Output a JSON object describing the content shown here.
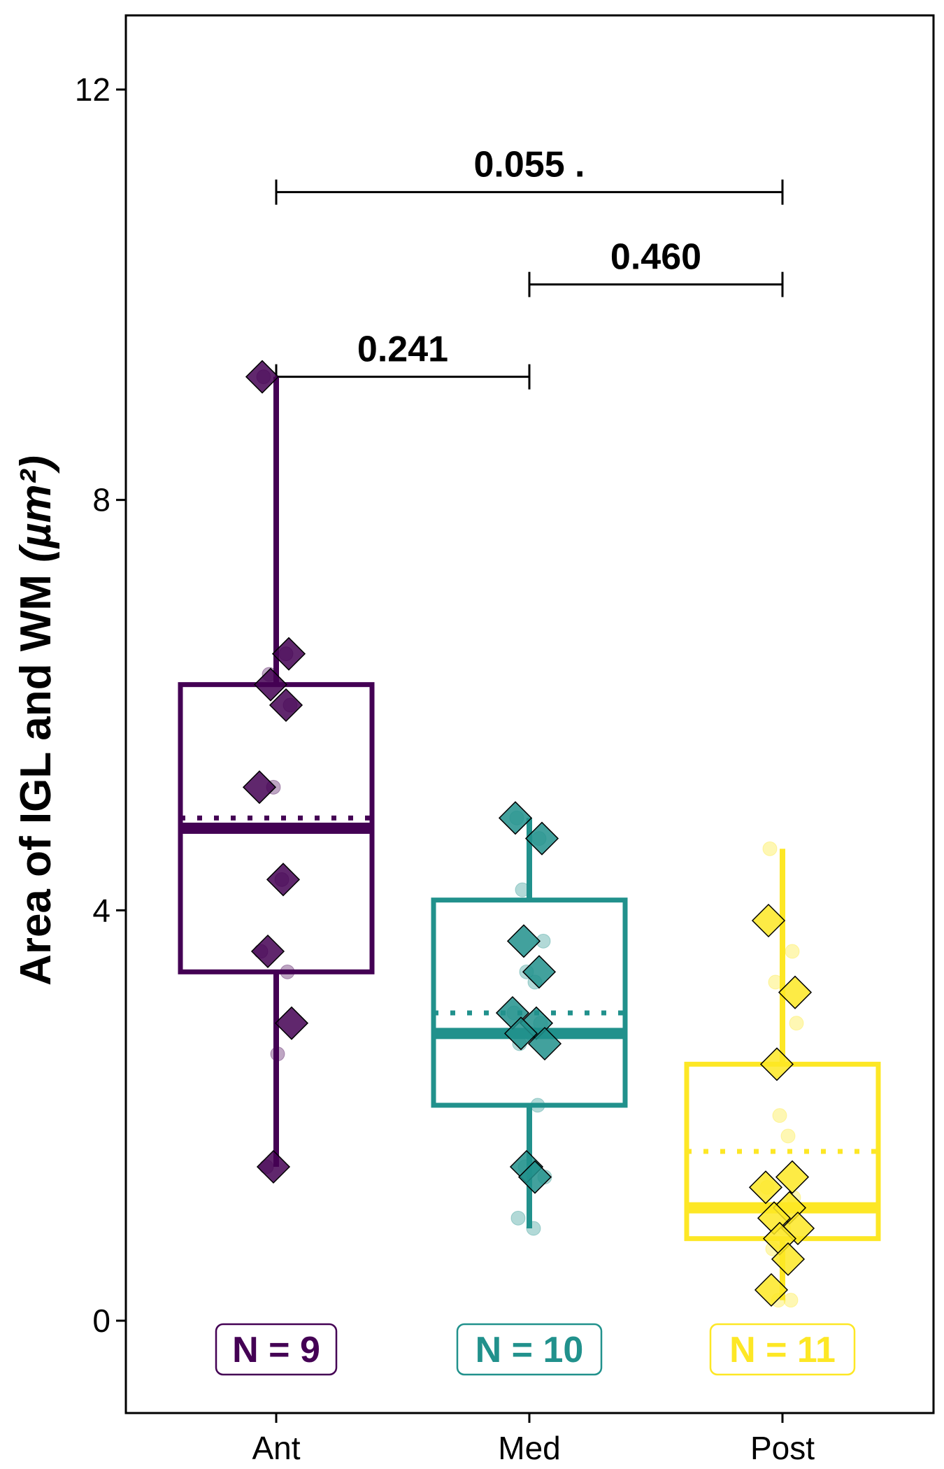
{
  "chart_data": {
    "type": "box",
    "ylabel_main": "Area of IGL and WM ",
    "ylabel_unit": "(µm²)",
    "xlabel": "",
    "ylim": [
      -0.8,
      12.8
    ],
    "yticks": [
      0,
      4,
      8,
      12
    ],
    "ytick_labels": [
      "0",
      "4",
      "8",
      "12"
    ],
    "categories": [
      "Ant",
      "Med",
      "Post"
    ],
    "colors": [
      "#440154",
      "#21918c",
      "#fde725"
    ],
    "groups": [
      {
        "name": "Ant",
        "n_label": "N = 9",
        "q1": 3.4,
        "median": 4.8,
        "q3": 6.2,
        "mean": 4.9,
        "whisker_low": 1.5,
        "whisker_high": 9.2,
        "diamonds": [
          9.2,
          6.5,
          6.2,
          6.0,
          5.2,
          4.3,
          3.6,
          2.9,
          1.5
        ],
        "points": [
          9.2,
          6.5,
          6.3,
          6.0,
          5.2,
          4.3,
          3.6,
          3.4,
          2.6,
          1.5
        ]
      },
      {
        "name": "Med",
        "n_label": "N = 10",
        "q1": 2.1,
        "median": 2.8,
        "q3": 4.1,
        "mean": 3.0,
        "whisker_low": 0.9,
        "whisker_high": 4.9,
        "diamonds": [
          4.9,
          4.7,
          3.7,
          3.4,
          3.0,
          2.9,
          2.8,
          2.7,
          1.5,
          1.4
        ],
        "points": [
          4.9,
          4.7,
          4.2,
          3.7,
          3.4,
          3.3,
          3.0,
          2.9,
          2.8,
          2.7,
          2.1,
          1.5,
          1.4,
          1.0,
          0.9
        ]
      },
      {
        "name": "Post",
        "n_label": "N = 11",
        "q1": 0.8,
        "median": 1.1,
        "q3": 2.5,
        "mean": 1.65,
        "whisker_low": 0.2,
        "whisker_high": 4.6,
        "diamonds": [
          3.9,
          3.2,
          2.5,
          1.4,
          1.3,
          1.1,
          1.0,
          0.9,
          0.8,
          0.6,
          0.3
        ],
        "points": [
          4.6,
          3.6,
          3.3,
          2.9,
          2.0,
          1.8,
          1.3,
          1.2,
          0.9,
          0.7,
          0.2,
          0.2
        ]
      }
    ],
    "comparisons": [
      {
        "from": "Ant",
        "to": "Med",
        "y": 9.2,
        "label": "0.241"
      },
      {
        "from": "Med",
        "to": "Post",
        "y": 10.1,
        "label": "0.460"
      },
      {
        "from": "Ant",
        "to": "Post",
        "y": 11.0,
        "label": "0.055 ."
      }
    ],
    "grid": false,
    "legend": "none"
  }
}
